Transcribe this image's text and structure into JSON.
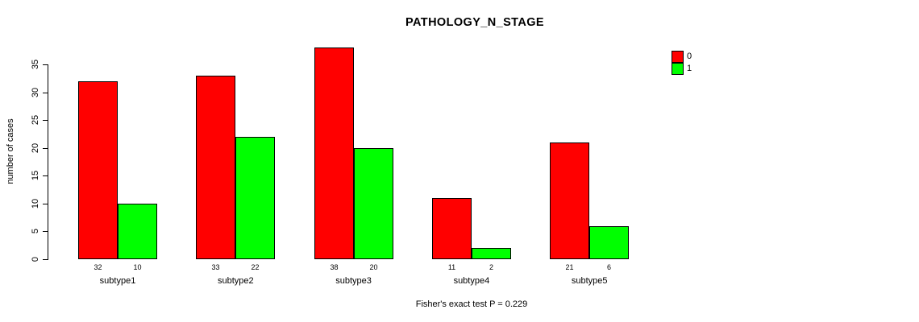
{
  "title": "PATHOLOGY_N_STAGE",
  "y_axis_label": "number of cases",
  "footer": "Fisher's exact test P = 0.229",
  "legend": {
    "items": [
      {
        "label": "0",
        "color": "#FF0000"
      },
      {
        "label": "1",
        "color": "#00FF00"
      }
    ]
  },
  "chart_data": {
    "type": "bar",
    "title": "PATHOLOGY_N_STAGE",
    "categories": [
      "subtype1",
      "subtype2",
      "subtype3",
      "subtype4",
      "subtype5"
    ],
    "series": [
      {
        "name": "0",
        "color": "#FF0000",
        "values": [
          32,
          33,
          38,
          11,
          21
        ]
      },
      {
        "name": "1",
        "color": "#00FF00",
        "values": [
          10,
          22,
          20,
          2,
          6
        ]
      }
    ],
    "xlabel": "",
    "ylabel": "number of cases",
    "ylim": [
      0,
      35
    ],
    "yticks": [
      0,
      5,
      10,
      15,
      20,
      25,
      30,
      35
    ],
    "grid": false,
    "legend_position": "top-right",
    "bar_borders": "#000000",
    "annotation": "Fisher's exact test P = 0.229"
  }
}
